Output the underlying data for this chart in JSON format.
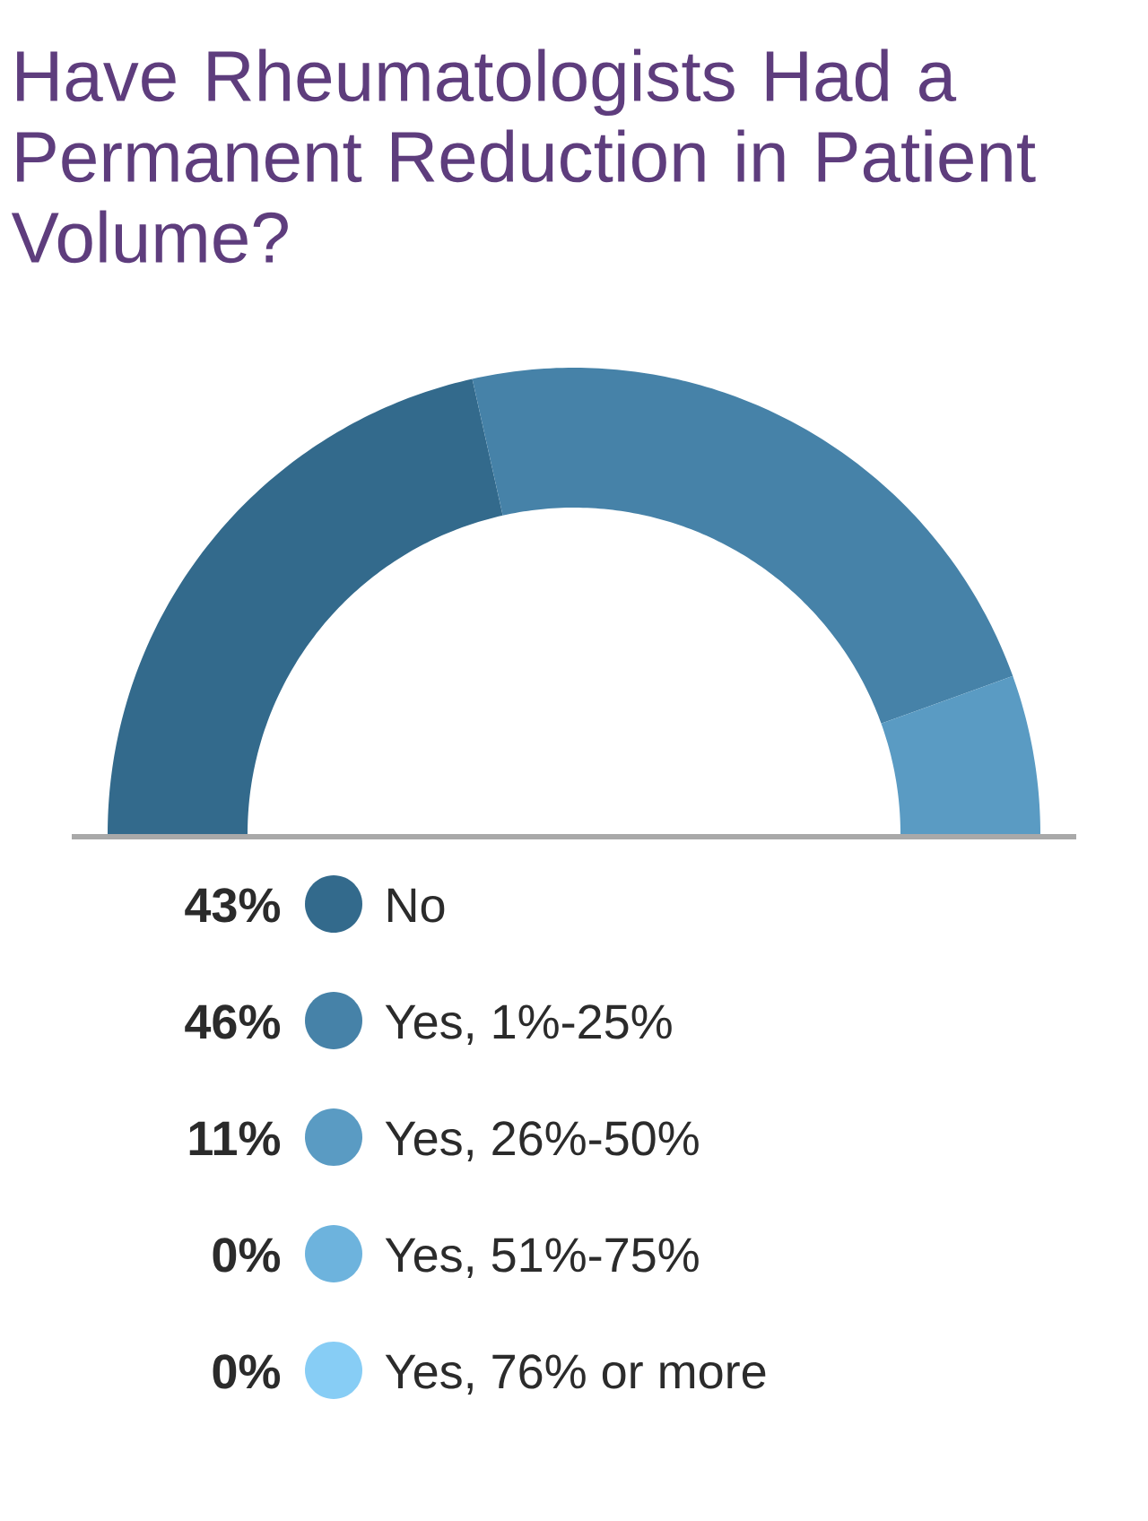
{
  "chart_data": {
    "type": "donut",
    "title": "Have Rheumatologists Had a Permanent Reduction in Patient Volume?",
    "categories": [
      "No",
      "Yes, 1%-25%",
      "Yes, 26%-50%",
      "Yes, 51%-75%",
      "Yes, 76% or more"
    ],
    "values": [
      43,
      46,
      11,
      0,
      0
    ],
    "value_labels": [
      "43%",
      "46%",
      "11%",
      "0%",
      "0%"
    ],
    "colors": [
      "#336a8c",
      "#4682a8",
      "#5a9bc3",
      "#6db3dd",
      "#87cdf5"
    ],
    "legend": "bottom"
  }
}
